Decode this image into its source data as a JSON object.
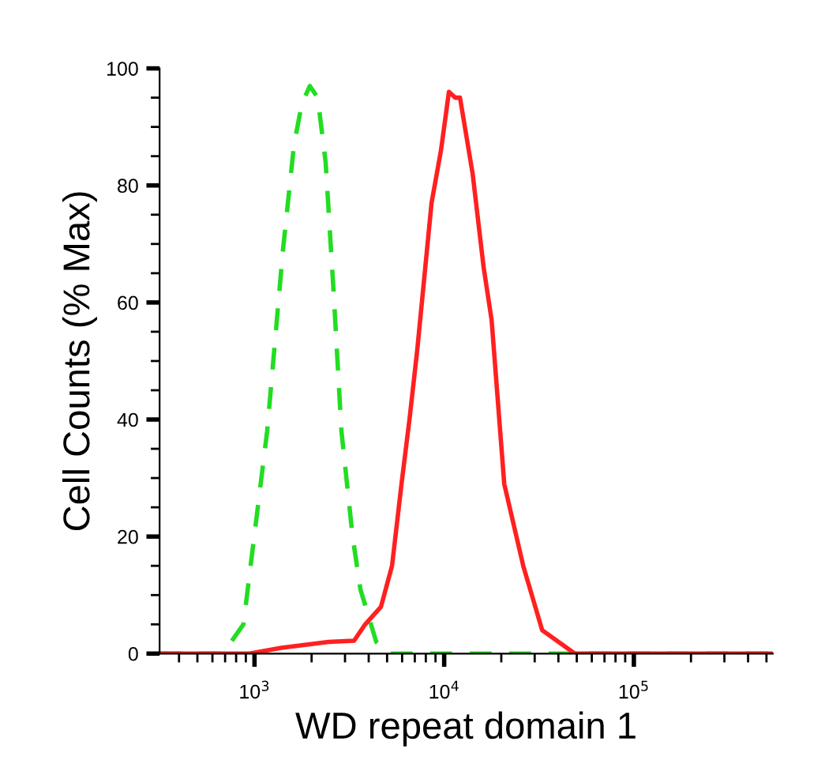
{
  "chart_data": {
    "type": "line",
    "xlabel": "WD repeat domain 1",
    "ylabel": "Cell Counts (% Max)",
    "log": "x",
    "xlim": [
      316,
      540000
    ],
    "ylim": [
      0,
      100
    ],
    "xticks": [
      {
        "value": 1000,
        "label": "10$^{3}$"
      },
      {
        "value": 10000,
        "label": "10$^{4}$"
      },
      {
        "value": 100000,
        "label": "10$^{5}$"
      }
    ],
    "yticks": [
      0,
      20,
      40,
      60,
      80,
      100
    ],
    "grid": false,
    "legend": false,
    "marker": "none",
    "series": [
      {
        "color": "#22dd22",
        "line_style": "dashed",
        "x": [
          316,
          562,
          681,
          874,
          1166,
          1413,
          1616,
          1778,
          1957,
          2154,
          2371,
          2610,
          2873,
          3290,
          3616,
          4384,
          5105,
          540000
        ],
        "values": [
          0,
          0,
          0,
          5,
          38,
          69,
          87,
          94,
          97,
          95,
          84,
          62,
          38,
          20,
          11,
          2,
          0,
          0
        ]
      },
      {
        "color": "#ff2020",
        "line_style": "solid",
        "x": [
          316,
          944,
          1386,
          2459,
          3350,
          3831,
          4642,
          5309,
          5957,
          6561,
          7217,
          8577,
          9618,
          10593,
          11436,
          12115,
          14125,
          16143,
          17783,
          20730,
          26102,
          32860,
          48840,
          540000
        ],
        "values": [
          0,
          0,
          1,
          2,
          2.2,
          5,
          8,
          15,
          29,
          40,
          52,
          77,
          86,
          96,
          95,
          95,
          82,
          66,
          57,
          29,
          15,
          4,
          0,
          0
        ]
      }
    ]
  }
}
